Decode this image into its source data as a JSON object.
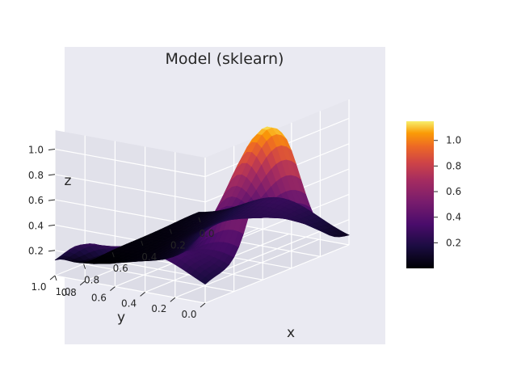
{
  "chart_data": {
    "type": "surface3d",
    "title": "Model (sklearn)",
    "xlabel": "x",
    "ylabel": "y",
    "zlabel": "z",
    "x_ticks": [
      "1.0",
      "0.8",
      "0.6",
      "0.4",
      "0.2",
      "0.0"
    ],
    "y_ticks": [
      "0.0",
      "0.2",
      "0.4",
      "0.6",
      "0.8",
      "1.0"
    ],
    "z_ticks": [
      "0.2",
      "0.4",
      "0.6",
      "0.8",
      "1.0"
    ],
    "colorbar_ticks": [
      "0.2",
      "0.4",
      "0.6",
      "0.8",
      "1.0"
    ],
    "xlim": [
      0,
      1
    ],
    "ylim": [
      0,
      1
    ],
    "zlim": [
      0.0,
      1.15
    ],
    "colormap": "inferno",
    "grid": true,
    "background": "#EAEAF2",
    "surface_peaks": [
      {
        "x": 0.5,
        "y": 0.05,
        "z": 1.15
      },
      {
        "x": 0.5,
        "y": 0.95,
        "z": 0.0
      }
    ]
  }
}
